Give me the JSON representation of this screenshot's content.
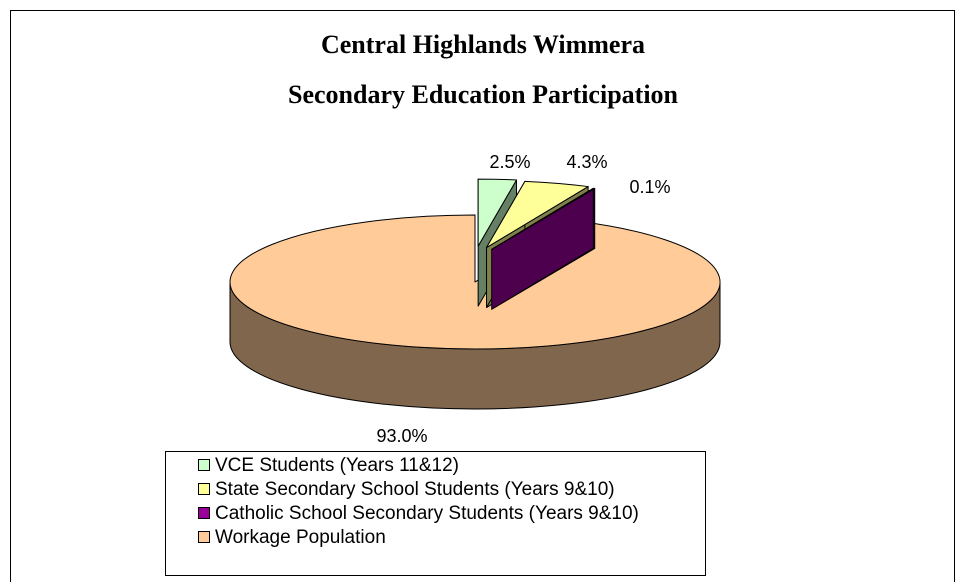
{
  "chart_data": {
    "type": "pie",
    "title": "Central Highlands Wimmera",
    "subtitle": "Secondary Education Participation",
    "categories": [
      "VCE Students (Years 11&12)",
      "State Secondary School Students (Years 9&10)",
      "Catholic School Secondary Students (Years 9&10)",
      "Workage Population"
    ],
    "values": [
      2.5,
      4.3,
      0.1,
      93.0
    ],
    "value_labels": [
      "2.5%",
      "4.3%",
      "0.1%",
      "93.0%"
    ],
    "colors": [
      "#ccffcc",
      "#ffff99",
      "#990099",
      "#ffcc99"
    ],
    "legend": "bottom"
  }
}
